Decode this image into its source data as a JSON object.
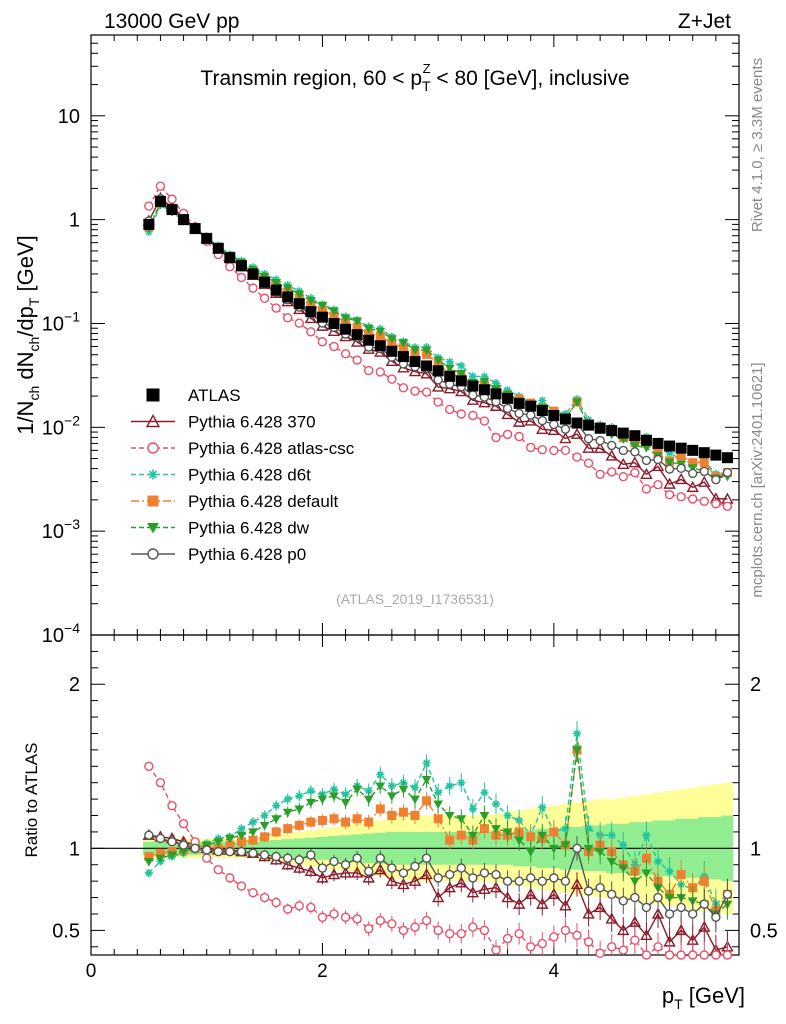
{
  "header": {
    "energy_label": "13000 GeV pp",
    "process_label": "Z+Jet",
    "title_prefix": "Transmin region, 60 < p",
    "title_sub": "T",
    "title_sup": "Z",
    "title_suffix": " < 80 [GeV], inclusive"
  },
  "side_labels": {
    "rivet": "Rivet 4.1.0, ≥ 3.3M events",
    "mcplots": "mcplots.cern.ch [arXiv:2401.10621]"
  },
  "watermark": "(ATLAS_2019_I1736531)",
  "colors": {
    "atlas": "#000000",
    "p370": "#8b1a2b",
    "csc": "#e8506a",
    "d6t": "#22c4a0",
    "default": "#f08030",
    "dw": "#2aa02a",
    "p0": "#555555",
    "band_green": "#90ee90",
    "band_yellow": "#ffff99"
  },
  "chart_data": {
    "type": "line",
    "log_y": true,
    "xlim": [
      0,
      5.6
    ],
    "ylim": [
      0.0001,
      60
    ],
    "ratio_ylim": [
      0.35,
      2.3
    ],
    "ylabel_parts": {
      "a": "1/N",
      "a_sub": "ch",
      "b": " dN",
      "b_sub": "ch",
      "c": "/dp",
      "c_sub": "T",
      "d": " [GeV]"
    },
    "ratio_ylabel": "Ratio to ATLAS",
    "xlabel_parts": {
      "a": "p",
      "a_sub": "T",
      "b": " [GeV]"
    },
    "x_ticks": [
      "0",
      "2",
      "4"
    ],
    "y_ticks": [
      {
        "base": "10",
        "exp": "",
        "v": 10
      },
      {
        "base": "1",
        "exp": "",
        "v": 1
      },
      {
        "base": "10",
        "exp": "−1",
        "v": 0.1
      },
      {
        "base": "10",
        "exp": "−2",
        "v": 0.01
      },
      {
        "base": "10",
        "exp": "−3",
        "v": 0.001
      },
      {
        "base": "10",
        "exp": "−4",
        "v": 0.0001
      }
    ],
    "ratio_ticks": [
      "0.5",
      "1",
      "2"
    ],
    "x": [
      0.5,
      0.6,
      0.7,
      0.8,
      0.9,
      1.0,
      1.1,
      1.2,
      1.3,
      1.4,
      1.5,
      1.6,
      1.7,
      1.8,
      1.9,
      2.0,
      2.1,
      2.2,
      2.3,
      2.4,
      2.5,
      2.6,
      2.7,
      2.8,
      2.9,
      3.0,
      3.1,
      3.2,
      3.3,
      3.4,
      3.5,
      3.6,
      3.7,
      3.8,
      3.9,
      4.0,
      4.1,
      4.2,
      4.3,
      4.4,
      4.5,
      4.6,
      4.7,
      4.8,
      4.9,
      5.0,
      5.1,
      5.2,
      5.3,
      5.4,
      5.5
    ],
    "atlas": [
      0.9,
      1.5,
      1.25,
      1.0,
      0.82,
      0.66,
      0.53,
      0.43,
      0.36,
      0.3,
      0.25,
      0.21,
      0.18,
      0.155,
      0.13,
      0.115,
      0.1,
      0.088,
      0.078,
      0.069,
      0.061,
      0.054,
      0.048,
      0.043,
      0.039,
      0.035,
      0.031,
      0.028,
      0.025,
      0.023,
      0.021,
      0.019,
      0.017,
      0.016,
      0.0145,
      0.013,
      0.012,
      0.011,
      0.0105,
      0.0098,
      0.0093,
      0.0088,
      0.0083,
      0.0075,
      0.007,
      0.0066,
      0.0063,
      0.006,
      0.0057,
      0.0054,
      0.0051
    ],
    "band_green": [
      0.04,
      0.04,
      0.04,
      0.04,
      0.04,
      0.04,
      0.04,
      0.04,
      0.04,
      0.04,
      0.045,
      0.05,
      0.055,
      0.06,
      0.065,
      0.07,
      0.075,
      0.08,
      0.085,
      0.09,
      0.095,
      0.1,
      0.1,
      0.1,
      0.1,
      0.1,
      0.1,
      0.1,
      0.1,
      0.1,
      0.1,
      0.1,
      0.11,
      0.11,
      0.12,
      0.12,
      0.13,
      0.13,
      0.14,
      0.14,
      0.15,
      0.15,
      0.16,
      0.16,
      0.17,
      0.17,
      0.18,
      0.18,
      0.19,
      0.19,
      0.2
    ],
    "band_yellow": [
      0.06,
      0.06,
      0.06,
      0.06,
      0.06,
      0.06,
      0.06,
      0.06,
      0.06,
      0.06,
      0.07,
      0.08,
      0.09,
      0.1,
      0.11,
      0.12,
      0.13,
      0.14,
      0.15,
      0.16,
      0.17,
      0.18,
      0.19,
      0.2,
      0.2,
      0.2,
      0.2,
      0.2,
      0.2,
      0.2,
      0.21,
      0.22,
      0.23,
      0.24,
      0.25,
      0.26,
      0.27,
      0.28,
      0.29,
      0.3,
      0.3,
      0.31,
      0.32,
      0.33,
      0.34,
      0.35,
      0.36,
      0.37,
      0.38,
      0.39,
      0.4
    ],
    "series": [
      {
        "key": "p370",
        "name": "Pythia 6.428 370",
        "color_key": "p370",
        "marker": "triangle-open",
        "dash": "",
        "ratio": [
          1.08,
          1.07,
          1.06,
          1.04,
          1.02,
          1.0,
          0.99,
          0.99,
          0.98,
          0.97,
          0.95,
          0.93,
          0.9,
          0.88,
          0.86,
          0.82,
          0.84,
          0.85,
          0.85,
          0.82,
          0.87,
          0.8,
          0.78,
          0.8,
          0.84,
          0.7,
          0.76,
          0.79,
          0.73,
          0.75,
          0.76,
          0.7,
          0.66,
          0.72,
          0.66,
          0.72,
          0.65,
          0.78,
          0.6,
          0.64,
          0.57,
          0.5,
          0.55,
          0.47,
          0.6,
          0.43,
          0.5,
          0.44,
          0.52,
          0.38,
          0.4
        ]
      },
      {
        "key": "csc",
        "name": "Pythia 6.428 atlas-csc",
        "color_key": "csc",
        "marker": "circle-open",
        "dash": "5,3",
        "ratio": [
          1.5,
          1.4,
          1.26,
          1.15,
          1.04,
          0.94,
          0.87,
          0.82,
          0.77,
          0.73,
          0.7,
          0.67,
          0.63,
          0.65,
          0.64,
          0.58,
          0.6,
          0.58,
          0.57,
          0.51,
          0.56,
          0.54,
          0.5,
          0.52,
          0.56,
          0.5,
          0.48,
          0.48,
          0.52,
          0.5,
          0.38,
          0.45,
          0.48,
          0.4,
          0.42,
          0.46,
          0.5,
          0.47,
          0.43,
          0.36,
          0.4,
          0.38,
          0.44,
          0.34,
          0.4,
          0.34,
          0.34,
          0.34,
          0.34,
          0.34,
          0.34
        ]
      },
      {
        "key": "d6t",
        "name": "Pythia 6.428 d6t",
        "color_key": "d6t",
        "marker": "star",
        "dash": "5,3",
        "ratio": [
          0.85,
          0.92,
          0.95,
          0.97,
          0.99,
          1.03,
          1.06,
          1.07,
          1.12,
          1.16,
          1.2,
          1.26,
          1.3,
          1.32,
          1.35,
          1.33,
          1.36,
          1.33,
          1.38,
          1.35,
          1.45,
          1.38,
          1.4,
          1.37,
          1.52,
          1.34,
          1.38,
          1.4,
          1.24,
          1.34,
          1.27,
          1.2,
          1.17,
          1.08,
          1.25,
          1.1,
          1.12,
          1.7,
          1.12,
          1.08,
          1.08,
          1.02,
          0.9,
          1.08,
          0.92,
          0.86,
          0.78,
          0.75,
          0.83,
          0.66,
          0.72
        ]
      },
      {
        "key": "default",
        "name": "Pythia 6.428 default",
        "color_key": "default",
        "marker": "square",
        "dash": "8,3,2,3",
        "ratio": [
          0.95,
          0.97,
          0.98,
          0.99,
          1.0,
          1.01,
          1.0,
          1.02,
          1.04,
          1.05,
          1.07,
          1.1,
          1.12,
          1.14,
          1.16,
          1.17,
          1.18,
          1.16,
          1.18,
          1.16,
          1.24,
          1.2,
          1.22,
          1.2,
          1.29,
          1.18,
          1.05,
          1.08,
          1.05,
          1.12,
          1.08,
          1.08,
          1.1,
          1.07,
          1.06,
          1.1,
          1.02,
          1.6,
          0.98,
          1.02,
          0.98,
          0.9,
          0.86,
          0.94,
          0.8,
          0.72,
          0.84,
          0.76,
          0.8,
          0.62,
          0.72
        ]
      },
      {
        "key": "dw",
        "name": "Pythia 6.428 dw",
        "color_key": "dw",
        "marker": "triangle-down",
        "dash": "5,3",
        "ratio": [
          0.92,
          0.94,
          0.96,
          0.98,
          1.0,
          1.02,
          1.04,
          1.06,
          1.08,
          1.1,
          1.14,
          1.18,
          1.22,
          1.24,
          1.28,
          1.3,
          1.32,
          1.28,
          1.36,
          1.3,
          1.38,
          1.32,
          1.36,
          1.3,
          1.42,
          1.27,
          1.2,
          1.18,
          1.08,
          1.2,
          1.12,
          1.1,
          1.05,
          0.98,
          1.08,
          1.0,
          1.02,
          1.6,
          1.0,
          0.98,
          0.92,
          0.88,
          0.8,
          0.85,
          0.76,
          0.7,
          0.7,
          0.68,
          0.66,
          0.6,
          0.66
        ]
      },
      {
        "key": "p0",
        "name": "Pythia 6.428 p0",
        "color_key": "p0",
        "marker": "circle-open",
        "dash": "",
        "ratio": [
          1.08,
          1.06,
          1.04,
          1.02,
          1.0,
          0.99,
          0.98,
          0.98,
          0.98,
          0.97,
          0.96,
          0.95,
          0.94,
          0.93,
          0.96,
          0.88,
          0.92,
          0.9,
          0.94,
          0.86,
          0.94,
          0.88,
          0.85,
          0.89,
          0.94,
          0.82,
          0.84,
          0.88,
          0.82,
          0.85,
          0.84,
          0.8,
          0.8,
          0.82,
          0.8,
          0.82,
          0.8,
          1.0,
          0.74,
          0.76,
          0.72,
          0.68,
          0.7,
          0.64,
          0.7,
          0.6,
          0.64,
          0.6,
          0.66,
          0.58,
          0.72
        ]
      }
    ]
  }
}
